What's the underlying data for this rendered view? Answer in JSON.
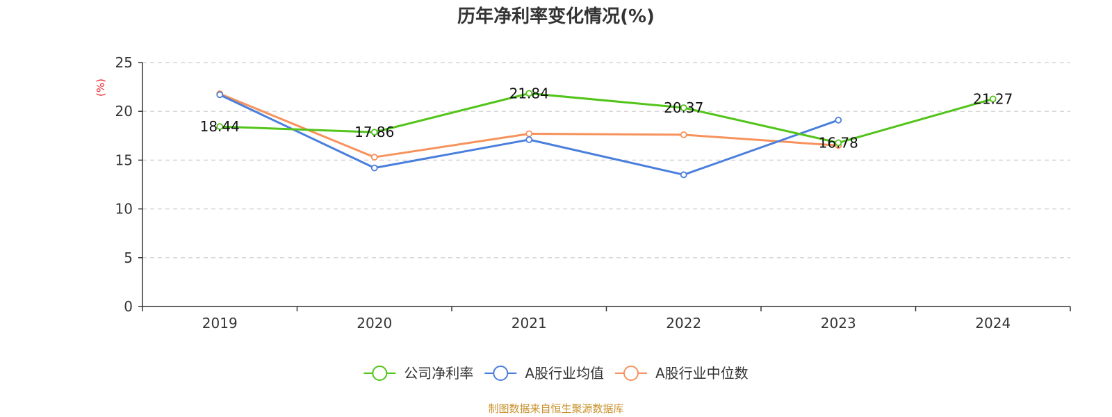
{
  "chart_data": {
    "type": "line",
    "title": "历年净利率变化情况(%)",
    "ylabel": "(%)",
    "xlabel": "",
    "categories": [
      "2019",
      "2020",
      "2021",
      "2022",
      "2023",
      "2024"
    ],
    "ylim": [
      0,
      25
    ],
    "yticks": [
      0,
      5,
      10,
      15,
      20,
      25
    ],
    "grid": true,
    "legend_position": "bottom",
    "series": [
      {
        "name": "公司净利率",
        "color": "#52c41a",
        "values": [
          18.44,
          17.86,
          21.84,
          20.37,
          16.78,
          21.27
        ],
        "labels": [
          "18.44",
          "17.86",
          "21.84",
          "20.37",
          "16.78",
          "21.27"
        ],
        "show_labels": true
      },
      {
        "name": "A股行业均值",
        "color": "#4a7fdc",
        "values": [
          21.7,
          14.2,
          17.1,
          13.5,
          19.1,
          null
        ],
        "show_labels": false
      },
      {
        "name": "A股行业中位数",
        "color": "#f7925c",
        "values": [
          21.8,
          15.3,
          17.7,
          17.6,
          16.5,
          null
        ],
        "show_labels": false
      }
    ]
  },
  "footer": {
    "source": "制图数据来自恒生聚源数据库"
  },
  "colors": {
    "ylabel": "#e8242b",
    "source": "#c7902b",
    "axis": "#333333",
    "grid": "#cccccc"
  }
}
